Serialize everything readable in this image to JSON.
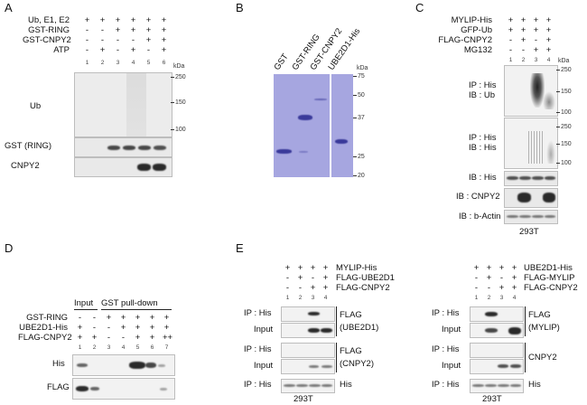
{
  "panels": {
    "A": {
      "label": "A",
      "conditions": [
        {
          "name": "Ub, E1, E2",
          "marks": [
            "+",
            "+",
            "+",
            "+",
            "+",
            "+"
          ]
        },
        {
          "name": "GST-RING",
          "marks": [
            "-",
            "-",
            "+",
            "+",
            "+",
            "+"
          ]
        },
        {
          "name": "GST-CNPY2",
          "marks": [
            "-",
            "-",
            "-",
            "-",
            "+",
            "+"
          ]
        },
        {
          "name": "ATP",
          "marks": [
            "-",
            "+",
            "-",
            "+",
            "-",
            "+"
          ]
        }
      ],
      "lanes": [
        "1",
        "2",
        "3",
        "4",
        "5",
        "6"
      ],
      "kda_label": "kDa",
      "mw_markers": [
        "250",
        "150",
        "100"
      ],
      "blots": [
        "Ub",
        "GST (RING)",
        "CNPY2"
      ]
    },
    "B": {
      "label": "B",
      "lanes": [
        "GST",
        "GST-RING",
        "GST-CNPY2",
        "UBE2D1-His"
      ],
      "kda_label": "kDa",
      "mw_markers": [
        "75",
        "50",
        "37",
        "25",
        "20"
      ]
    },
    "C": {
      "label": "C",
      "conditions": [
        {
          "name": "MYLIP-His",
          "marks": [
            "+",
            "+",
            "+",
            "+"
          ]
        },
        {
          "name": "GFP-Ub",
          "marks": [
            "+",
            "+",
            "+",
            "+"
          ]
        },
        {
          "name": "FLAG-CNPY2",
          "marks": [
            "-",
            "+",
            "-",
            "+"
          ]
        },
        {
          "name": "MG132",
          "marks": [
            "-",
            "-",
            "+",
            "+"
          ]
        }
      ],
      "lanes": [
        "1",
        "2",
        "3",
        "4"
      ],
      "kda_label": "kDa",
      "mw_markers_1": [
        "250",
        "150",
        "100"
      ],
      "mw_markers_2": [
        "250",
        "150",
        "100"
      ],
      "blots": [
        "IP : His\nIB : Ub",
        "IP : His\nIB : His",
        "IB : His",
        "IB : CNPY2",
        "IB : b-Actin"
      ],
      "blot_lines": {
        "b1": [
          "IP : His",
          "IB : Ub"
        ],
        "b2": [
          "IP : His",
          "IB : His"
        ],
        "b3": "IB : His",
        "b4": "IB : CNPY2",
        "b5": "IB : b-Actin"
      },
      "cell_line": "293T"
    },
    "D": {
      "label": "D",
      "header_input": "Input",
      "header_pulldown": "GST pull-down",
      "conditions": [
        {
          "name": "GST-RING",
          "marks": [
            "-",
            "-",
            "+",
            "+",
            "+",
            "+",
            "+"
          ]
        },
        {
          "name": "UBE2D1-His",
          "marks": [
            "+",
            "-",
            "-",
            "+",
            "+",
            "+",
            "+"
          ]
        },
        {
          "name": "FLAG-CNPY2",
          "marks": [
            "+",
            "+",
            "-",
            "-",
            "+",
            "+",
            "++"
          ]
        }
      ],
      "lanes": [
        "1",
        "2",
        "3",
        "4",
        "5",
        "6",
        "7"
      ],
      "blots": [
        "His",
        "FLAG"
      ]
    },
    "E": {
      "label": "E",
      "left": {
        "conditions": [
          {
            "name": "MYLIP-His",
            "marks": [
              "+",
              "+",
              "+",
              "+"
            ]
          },
          {
            "name": "FLAG-UBE2D1",
            "marks": [
              "-",
              "+",
              "-",
              "+"
            ]
          },
          {
            "name": "FLAG-CNPY2",
            "marks": [
              "-",
              "-",
              "+",
              "+"
            ]
          }
        ],
        "lanes": [
          "1",
          "2",
          "3",
          "4"
        ],
        "rows": [
          "IP : His",
          "Input",
          "IP : His",
          "Input",
          "IP : His"
        ],
        "group1": [
          "FLAG",
          "(UBE2D1)"
        ],
        "group2": [
          "FLAG",
          "(CNPY2)"
        ],
        "last": "His",
        "cell_line": "293T"
      },
      "right": {
        "conditions": [
          {
            "name": "UBE2D1-His",
            "marks": [
              "+",
              "+",
              "+",
              "+"
            ]
          },
          {
            "name": "FLAG-MYLIP",
            "marks": [
              "-",
              "+",
              "-",
              "+"
            ]
          },
          {
            "name": "FLAG-CNPY2",
            "marks": [
              "-",
              "-",
              "+",
              "+"
            ]
          }
        ],
        "lanes": [
          "1",
          "2",
          "3",
          "4"
        ],
        "rows": [
          "IP : His",
          "Input",
          "IP : His",
          "Input",
          "IP : His"
        ],
        "group1": [
          "FLAG",
          "(MYLIP)"
        ],
        "group2": "CNPY2",
        "last": "His",
        "cell_line": "293T"
      }
    }
  }
}
